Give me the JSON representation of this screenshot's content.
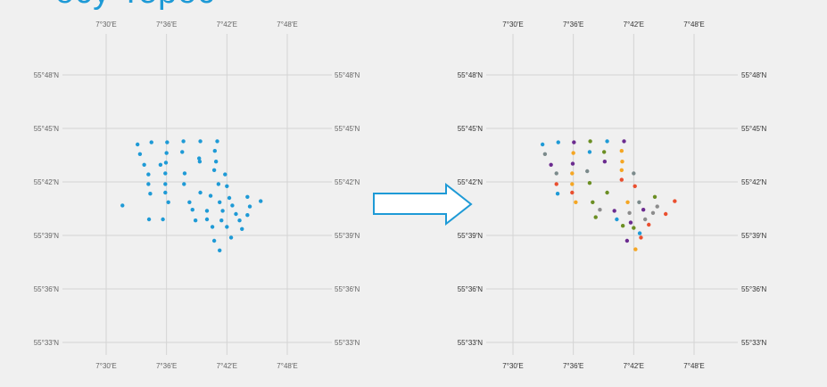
{
  "title_fragment": "ocy Tepoc",
  "colors": {
    "accent": "#1e9ad6",
    "arrow_fill": "#ffffff",
    "arrow_stroke": "#1e9ad6",
    "palette": [
      "#1e9ad6",
      "#7b8a8b",
      "#6b2b8f",
      "#f5a623",
      "#6b8e23",
      "#ea4f2f",
      "#8c8c8c"
    ]
  },
  "chart_data": [
    {
      "type": "scatter",
      "name": "left-map",
      "xlim": [
        7.4,
        7.9
      ],
      "ylim": [
        55.53,
        55.83
      ],
      "x_ticks": [
        {
          "value": 7.5,
          "label": "7°30′E"
        },
        {
          "value": 7.6,
          "label": "7°36′E"
        },
        {
          "value": 7.7,
          "label": "7°42′E"
        },
        {
          "value": 7.8,
          "label": "7°48′E"
        }
      ],
      "y_ticks": [
        {
          "value": 55.8,
          "label": "55°48′N"
        },
        {
          "value": 55.75,
          "label": "55°45′N"
        },
        {
          "value": 55.7,
          "label": "55°42′N"
        },
        {
          "value": 55.65,
          "label": "55°39′N"
        },
        {
          "value": 55.6,
          "label": "55°36′N"
        },
        {
          "value": 55.55,
          "label": "55°33′N"
        }
      ],
      "grid": true,
      "points": [
        {
          "x": 7.552,
          "y": 55.735,
          "c": 0
        },
        {
          "x": 7.575,
          "y": 55.737,
          "c": 0
        },
        {
          "x": 7.601,
          "y": 55.737,
          "c": 0
        },
        {
          "x": 7.628,
          "y": 55.738,
          "c": 0
        },
        {
          "x": 7.656,
          "y": 55.738,
          "c": 0
        },
        {
          "x": 7.684,
          "y": 55.738,
          "c": 0
        },
        {
          "x": 7.556,
          "y": 55.726,
          "c": 0
        },
        {
          "x": 7.6,
          "y": 55.727,
          "c": 0
        },
        {
          "x": 7.626,
          "y": 55.728,
          "c": 0
        },
        {
          "x": 7.654,
          "y": 55.722,
          "c": 0
        },
        {
          "x": 7.68,
          "y": 55.729,
          "c": 0
        },
        {
          "x": 7.563,
          "y": 55.716,
          "c": 0
        },
        {
          "x": 7.59,
          "y": 55.716,
          "c": 0
        },
        {
          "x": 7.599,
          "y": 55.718,
          "c": 0
        },
        {
          "x": 7.655,
          "y": 55.719,
          "c": 0
        },
        {
          "x": 7.682,
          "y": 55.719,
          "c": 0
        },
        {
          "x": 7.57,
          "y": 55.707,
          "c": 0
        },
        {
          "x": 7.598,
          "y": 55.708,
          "c": 0
        },
        {
          "x": 7.63,
          "y": 55.708,
          "c": 0
        },
        {
          "x": 7.679,
          "y": 55.711,
          "c": 0
        },
        {
          "x": 7.697,
          "y": 55.707,
          "c": 0
        },
        {
          "x": 7.57,
          "y": 55.698,
          "c": 0
        },
        {
          "x": 7.598,
          "y": 55.698,
          "c": 0
        },
        {
          "x": 7.629,
          "y": 55.698,
          "c": 0
        },
        {
          "x": 7.686,
          "y": 55.698,
          "c": 0
        },
        {
          "x": 7.7,
          "y": 55.696,
          "c": 0
        },
        {
          "x": 7.573,
          "y": 55.689,
          "c": 0
        },
        {
          "x": 7.598,
          "y": 55.69,
          "c": 0
        },
        {
          "x": 7.656,
          "y": 55.69,
          "c": 0
        },
        {
          "x": 7.673,
          "y": 55.687,
          "c": 0
        },
        {
          "x": 7.704,
          "y": 55.685,
          "c": 0
        },
        {
          "x": 7.734,
          "y": 55.686,
          "c": 0
        },
        {
          "x": 7.527,
          "y": 55.678,
          "c": 0
        },
        {
          "x": 7.603,
          "y": 55.681,
          "c": 0
        },
        {
          "x": 7.638,
          "y": 55.681,
          "c": 0
        },
        {
          "x": 7.688,
          "y": 55.681,
          "c": 0
        },
        {
          "x": 7.709,
          "y": 55.678,
          "c": 0
        },
        {
          "x": 7.738,
          "y": 55.677,
          "c": 0
        },
        {
          "x": 7.756,
          "y": 55.682,
          "c": 0
        },
        {
          "x": 7.643,
          "y": 55.674,
          "c": 0
        },
        {
          "x": 7.667,
          "y": 55.673,
          "c": 0
        },
        {
          "x": 7.693,
          "y": 55.673,
          "c": 0
        },
        {
          "x": 7.715,
          "y": 55.67,
          "c": 0
        },
        {
          "x": 7.734,
          "y": 55.669,
          "c": 0
        },
        {
          "x": 7.571,
          "y": 55.665,
          "c": 0
        },
        {
          "x": 7.594,
          "y": 55.665,
          "c": 0
        },
        {
          "x": 7.648,
          "y": 55.664,
          "c": 0
        },
        {
          "x": 7.667,
          "y": 55.665,
          "c": 0
        },
        {
          "x": 7.691,
          "y": 55.664,
          "c": 0
        },
        {
          "x": 7.721,
          "y": 55.664,
          "c": 0
        },
        {
          "x": 7.676,
          "y": 55.658,
          "c": 0
        },
        {
          "x": 7.7,
          "y": 55.658,
          "c": 0
        },
        {
          "x": 7.725,
          "y": 55.656,
          "c": 0
        },
        {
          "x": 7.707,
          "y": 55.648,
          "c": 0
        },
        {
          "x": 7.679,
          "y": 55.645,
          "c": 0
        },
        {
          "x": 7.688,
          "y": 55.636,
          "c": 0
        }
      ]
    },
    {
      "type": "scatter",
      "name": "right-map",
      "xlim": [
        7.4,
        7.9
      ],
      "ylim": [
        55.53,
        55.83
      ],
      "x_ticks": [
        {
          "value": 7.5,
          "label": "7°30′E"
        },
        {
          "value": 7.6,
          "label": "7°36′E"
        },
        {
          "value": 7.7,
          "label": "7°42′E"
        },
        {
          "value": 7.8,
          "label": "7°48′E"
        }
      ],
      "y_ticks": [
        {
          "value": 55.8,
          "label": "55°48′N"
        },
        {
          "value": 55.75,
          "label": "55°45′N"
        },
        {
          "value": 55.7,
          "label": "55°42′N"
        },
        {
          "value": 55.65,
          "label": "55°39′N"
        },
        {
          "value": 55.6,
          "label": "55°36′N"
        },
        {
          "value": 55.55,
          "label": "55°33′N"
        }
      ],
      "grid": true,
      "points": [
        {
          "x": 7.549,
          "y": 55.735,
          "c": 0
        },
        {
          "x": 7.575,
          "y": 55.737,
          "c": 0
        },
        {
          "x": 7.601,
          "y": 55.737,
          "c": 2
        },
        {
          "x": 7.628,
          "y": 55.738,
          "c": 4
        },
        {
          "x": 7.656,
          "y": 55.738,
          "c": 0
        },
        {
          "x": 7.684,
          "y": 55.738,
          "c": 2
        },
        {
          "x": 7.553,
          "y": 55.726,
          "c": 1
        },
        {
          "x": 7.6,
          "y": 55.727,
          "c": 3
        },
        {
          "x": 7.627,
          "y": 55.728,
          "c": 0
        },
        {
          "x": 7.651,
          "y": 55.728,
          "c": 4
        },
        {
          "x": 7.68,
          "y": 55.729,
          "c": 3
        },
        {
          "x": 7.563,
          "y": 55.716,
          "c": 2
        },
        {
          "x": 7.599,
          "y": 55.717,
          "c": 2
        },
        {
          "x": 7.652,
          "y": 55.719,
          "c": 2
        },
        {
          "x": 7.681,
          "y": 55.719,
          "c": 3
        },
        {
          "x": 7.572,
          "y": 55.708,
          "c": 1
        },
        {
          "x": 7.598,
          "y": 55.708,
          "c": 3
        },
        {
          "x": 7.623,
          "y": 55.71,
          "c": 1
        },
        {
          "x": 7.68,
          "y": 55.711,
          "c": 3
        },
        {
          "x": 7.7,
          "y": 55.708,
          "c": 1
        },
        {
          "x": 7.572,
          "y": 55.698,
          "c": 5
        },
        {
          "x": 7.598,
          "y": 55.698,
          "c": 3
        },
        {
          "x": 7.627,
          "y": 55.699,
          "c": 4
        },
        {
          "x": 7.68,
          "y": 55.702,
          "c": 5
        },
        {
          "x": 7.702,
          "y": 55.696,
          "c": 5
        },
        {
          "x": 7.574,
          "y": 55.689,
          "c": 0
        },
        {
          "x": 7.598,
          "y": 55.69,
          "c": 5
        },
        {
          "x": 7.656,
          "y": 55.69,
          "c": 4
        },
        {
          "x": 7.735,
          "y": 55.686,
          "c": 4
        },
        {
          "x": 7.604,
          "y": 55.681,
          "c": 3
        },
        {
          "x": 7.632,
          "y": 55.681,
          "c": 4
        },
        {
          "x": 7.69,
          "y": 55.681,
          "c": 3
        },
        {
          "x": 7.709,
          "y": 55.681,
          "c": 1
        },
        {
          "x": 7.739,
          "y": 55.677,
          "c": 6
        },
        {
          "x": 7.768,
          "y": 55.682,
          "c": 5
        },
        {
          "x": 7.644,
          "y": 55.674,
          "c": 6
        },
        {
          "x": 7.668,
          "y": 55.673,
          "c": 2
        },
        {
          "x": 7.693,
          "y": 55.671,
          "c": 6
        },
        {
          "x": 7.716,
          "y": 55.674,
          "c": 2
        },
        {
          "x": 7.732,
          "y": 55.671,
          "c": 6
        },
        {
          "x": 7.753,
          "y": 55.67,
          "c": 5
        },
        {
          "x": 7.637,
          "y": 55.667,
          "c": 4
        },
        {
          "x": 7.672,
          "y": 55.665,
          "c": 0
        },
        {
          "x": 7.719,
          "y": 55.665,
          "c": 6
        },
        {
          "x": 7.725,
          "y": 55.66,
          "c": 5
        },
        {
          "x": 7.695,
          "y": 55.662,
          "c": 2
        },
        {
          "x": 7.682,
          "y": 55.659,
          "c": 4
        },
        {
          "x": 7.7,
          "y": 55.657,
          "c": 4
        },
        {
          "x": 7.71,
          "y": 55.652,
          "c": 0
        },
        {
          "x": 7.689,
          "y": 55.645,
          "c": 2
        },
        {
          "x": 7.712,
          "y": 55.648,
          "c": 5
        },
        {
          "x": 7.703,
          "y": 55.637,
          "c": 3
        }
      ]
    }
  ]
}
